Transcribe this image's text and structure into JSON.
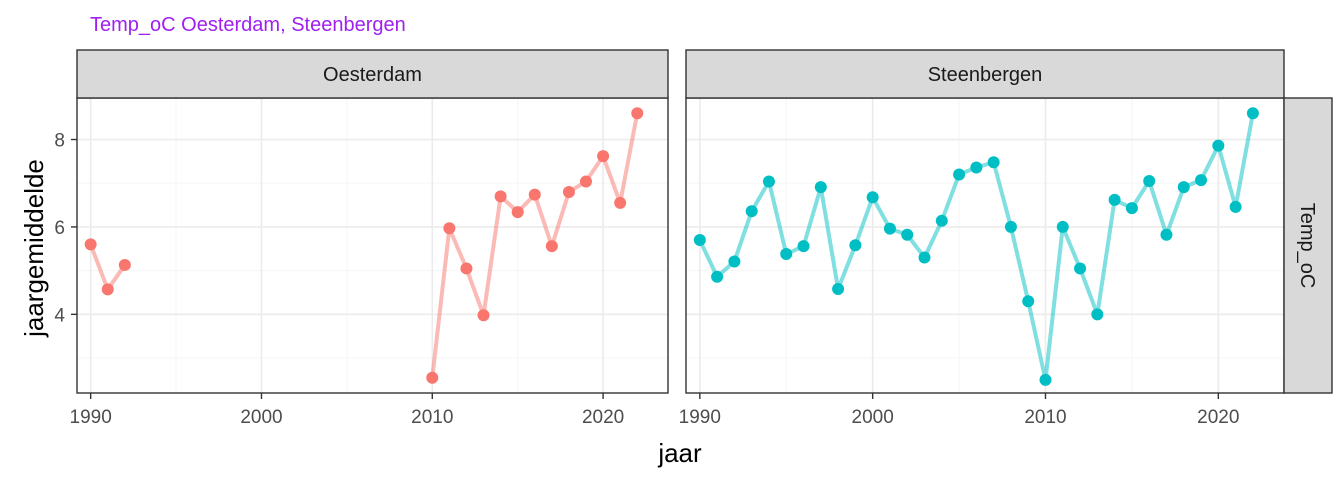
{
  "title": "Temp_oC Oesterdam, Steenbergen",
  "colors": {
    "title": "#A020F0",
    "oesterdam": "#F8766D",
    "steenbergen": "#00BFC4",
    "strip_fill": "#D9D9D9",
    "panel_border": "#333333",
    "grid_major": "#EBEBEB",
    "grid_minor": "#F5F5F5",
    "tick_text": "#4D4D4D"
  },
  "chart_data": {
    "type": "line",
    "xlabel": "jaar",
    "ylabel": "jaargemiddelde",
    "row_strip": "Temp_oC",
    "xlim": [
      1989.2,
      2023.8
    ],
    "ylim": [
      2.2,
      8.95
    ],
    "xticks": [
      1990,
      2000,
      2010,
      2020
    ],
    "yticks": [
      4,
      6,
      8
    ],
    "grid": true,
    "panels": [
      {
        "name": "Oesterdam",
        "color": "#F8766D",
        "segments": [
          {
            "x": [
              1990,
              1991,
              1992
            ],
            "y": [
              5.6,
              4.57,
              5.13
            ]
          },
          {
            "x": [
              2010,
              2011,
              2012,
              2013,
              2014,
              2015,
              2016,
              2017,
              2018,
              2019,
              2020,
              2021,
              2022
            ],
            "y": [
              2.55,
              5.97,
              5.05,
              3.98,
              6.7,
              6.34,
              6.74,
              5.56,
              6.8,
              7.04,
              7.62,
              6.55,
              8.6
            ]
          }
        ]
      },
      {
        "name": "Steenbergen",
        "color": "#00BFC4",
        "segments": [
          {
            "x": [
              1990,
              1991,
              1992,
              1993,
              1994,
              1995,
              1996,
              1997,
              1998,
              1999,
              2000,
              2001,
              2002,
              2003,
              2004,
              2005,
              2006,
              2007,
              2008,
              2009,
              2010,
              2011,
              2012,
              2013,
              2014,
              2015,
              2016,
              2017,
              2018,
              2019,
              2020,
              2021,
              2022
            ],
            "y": [
              5.7,
              4.86,
              5.21,
              6.36,
              7.04,
              5.38,
              5.56,
              6.91,
              4.58,
              5.58,
              6.68,
              5.96,
              5.82,
              5.3,
              6.14,
              7.2,
              7.36,
              7.48,
              6.0,
              4.3,
              2.5,
              6.0,
              5.05,
              4.0,
              6.62,
              6.43,
              7.05,
              5.82,
              6.91,
              7.07,
              7.86,
              6.46,
              8.6
            ]
          }
        ]
      }
    ]
  }
}
